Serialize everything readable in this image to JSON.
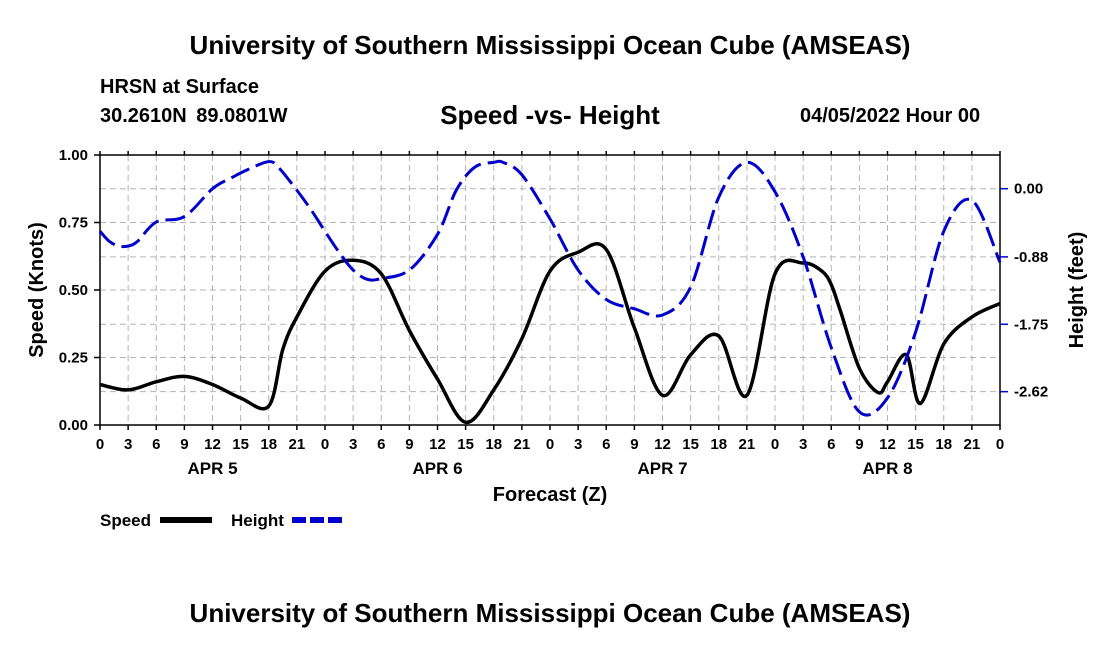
{
  "header": {
    "title": "University of Southern Mississippi Ocean Cube (AMSEAS)",
    "location_name": "HRSN at Surface",
    "coordinates": "30.2610N 89.0801W",
    "datetime": "04/05/2022 Hour 00"
  },
  "footer": {
    "title": "University of Southern Mississippi Ocean Cube (AMSEAS)"
  },
  "chart_data": {
    "type": "line",
    "title": "Speed -vs- Height",
    "xlabel": "Forecast (Z)",
    "ylabel_left": "Speed (Knots)",
    "ylabel_right": "Height (feet)",
    "x_range": [
      0,
      96
    ],
    "y_left_range": [
      0,
      1
    ],
    "y_left_ticks": [
      "0.00",
      "0.25",
      "0.50",
      "0.75",
      "1.00"
    ],
    "y_right_range": [
      -3.05,
      0.435
    ],
    "y_right_ticks": [
      "0.00",
      "-0.88",
      "-1.75",
      "-2.62"
    ],
    "x_tick_labels": [
      "0",
      "3",
      "6",
      "9",
      "12",
      "15",
      "18",
      "21",
      "0",
      "3",
      "6",
      "9",
      "12",
      "15",
      "18",
      "21",
      "0",
      "3",
      "6",
      "9",
      "12",
      "15",
      "18",
      "21",
      "0",
      "3",
      "6",
      "9",
      "12",
      "15",
      "18",
      "21",
      "0"
    ],
    "day_labels": [
      "APR 5",
      "APR 6",
      "APR 7",
      "APR 8"
    ],
    "grid": true,
    "legend_position": "bottom-left",
    "series": [
      {
        "name": "Speed",
        "color": "#000000",
        "style": "solid",
        "axis": "left",
        "x": [
          0,
          3,
          6,
          9,
          12,
          15,
          18,
          19.5,
          21,
          24,
          27,
          30,
          33,
          36,
          39,
          42,
          45,
          48,
          51,
          54,
          57,
          60,
          63,
          66,
          69,
          72,
          75,
          77,
          78,
          79,
          81,
          83,
          84,
          86,
          87.5,
          90,
          93,
          96
        ],
        "values": [
          0.15,
          0.13,
          0.16,
          0.18,
          0.15,
          0.1,
          0.07,
          0.28,
          0.4,
          0.57,
          0.61,
          0.56,
          0.35,
          0.17,
          0.01,
          0.13,
          0.32,
          0.57,
          0.64,
          0.65,
          0.36,
          0.11,
          0.26,
          0.33,
          0.11,
          0.56,
          0.6,
          0.57,
          0.52,
          0.42,
          0.21,
          0.12,
          0.16,
          0.26,
          0.08,
          0.3,
          0.4,
          0.45
        ]
      },
      {
        "name": "Height",
        "color": "#0000cc",
        "style": "dashed",
        "axis": "right",
        "x": [
          0,
          1,
          2,
          3,
          4,
          6,
          9,
          12,
          14,
          16,
          18,
          19,
          21,
          22.5,
          24,
          25.5,
          27,
          28.5,
          30,
          33,
          36,
          38,
          40,
          42,
          43,
          45,
          48,
          51,
          54,
          57,
          60,
          63,
          66,
          69,
          72,
          75,
          78,
          81,
          84,
          87,
          90,
          93,
          96
        ],
        "values": [
          -0.55,
          -0.68,
          -0.74,
          -0.74,
          -0.68,
          -0.43,
          -0.36,
          0.0,
          0.14,
          0.26,
          0.35,
          0.28,
          -0.02,
          -0.27,
          -0.55,
          -0.82,
          -1.05,
          -1.17,
          -1.16,
          -1.05,
          -0.59,
          -0.02,
          0.28,
          0.34,
          0.34,
          0.18,
          -0.39,
          -1.05,
          -1.43,
          -1.55,
          -1.63,
          -1.27,
          -0.11,
          0.34,
          -0.04,
          -0.88,
          -2.05,
          -2.88,
          -2.7,
          -1.85,
          -0.55,
          -0.15,
          -0.95
        ]
      }
    ]
  }
}
